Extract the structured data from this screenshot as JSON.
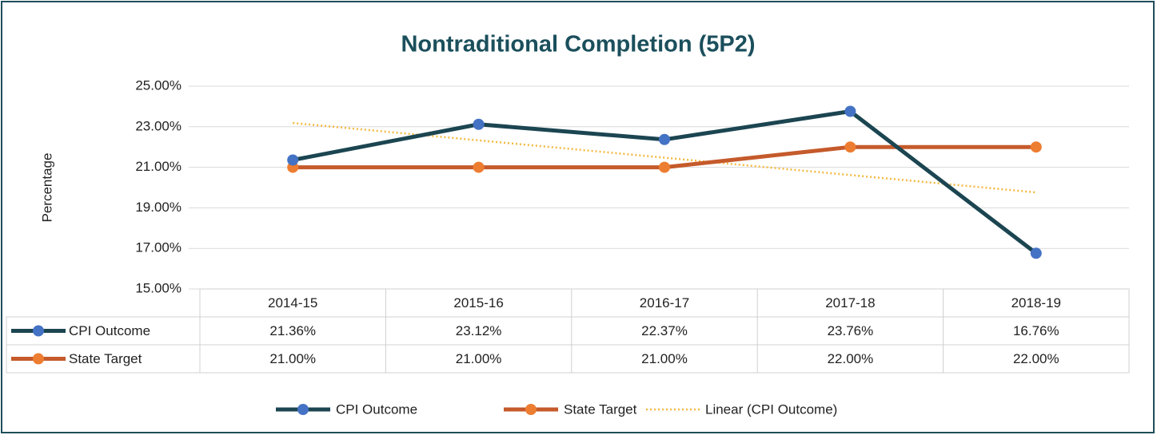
{
  "chart_data": {
    "type": "line",
    "title": "Nontraditional Completion (5P2)",
    "y_label": "Percentage",
    "categories": [
      "2014-15",
      "2015-16",
      "2016-17",
      "2017-18",
      "2018-19"
    ],
    "series": [
      {
        "name": "CPI Outcome",
        "color": "#1b4551",
        "marker_color": "#4472c4",
        "values": [
          21.36,
          23.12,
          22.37,
          23.76,
          16.76
        ],
        "value_labels": [
          "21.36%",
          "23.12%",
          "22.37%",
          "23.76%",
          "16.76%"
        ]
      },
      {
        "name": "State Target",
        "color": "#c55a2b",
        "marker_color": "#ed7d31",
        "values": [
          21.0,
          21.0,
          21.0,
          22.0,
          22.0
        ],
        "value_labels": [
          "21.00%",
          "21.00%",
          "21.00%",
          "22.00%",
          "22.00%"
        ]
      }
    ],
    "trendline": {
      "name": "Linear (CPI Outcome)",
      "color": "#f4b942",
      "type": "linear",
      "of": 0
    },
    "ylim": [
      15,
      25
    ],
    "yticks": [
      {
        "value": 15,
        "label": "15.00%"
      },
      {
        "value": 17,
        "label": "17.00%"
      },
      {
        "value": 19,
        "label": "19.00%"
      },
      {
        "value": 21,
        "label": "21.00%"
      },
      {
        "value": 23,
        "label": "23.00%"
      },
      {
        "value": 25,
        "label": "25.00%"
      }
    ],
    "grid": true,
    "legend": "bottom",
    "data_table": true
  }
}
